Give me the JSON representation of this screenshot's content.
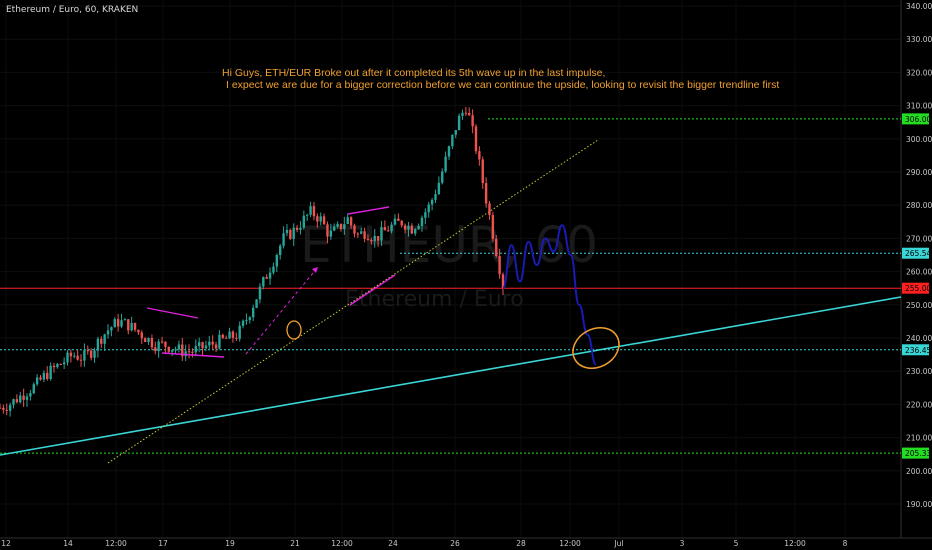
{
  "symbol_header": "Ethereum / Euro, 60, KRAKEN",
  "annotation": {
    "line1": "Hi Guys, ETH/EUR Broke out after it completed its 5th wave up in the last impulse,",
    "line2": "I expect we are due for a bigger correction before we can continue the upside, looking to revisit the bigger trendline first"
  },
  "watermark": {
    "ticker": "ETHEUR, 60",
    "name": "Ethereum / Euro"
  },
  "colors": {
    "background": "#000000",
    "up_candle": "#26a69a",
    "down_candle": "#ef5350",
    "support_line": "#22dd22",
    "resistance_red": "#ff2020",
    "cyan_trendline": "#3ad6d6",
    "yellow_trendline": "#c8c832",
    "magenta_channels": "#e020e0",
    "projection_path": "#1a1ab4",
    "circle": "#f0a030",
    "note_text": "#f0a030"
  },
  "chart_data": {
    "type": "candlestick",
    "title": "Ethereum / Euro, 60, KRAKEN",
    "ylim": [
      185,
      341
    ],
    "y_ticks": [
      190,
      200,
      210,
      220,
      230,
      240,
      250,
      260,
      270,
      280,
      290,
      300,
      310,
      320,
      330,
      340
    ],
    "y_tick_labels": [
      "190.00",
      "200.00",
      "210.00",
      "220.00",
      "230.00",
      "240.00",
      "250.00",
      "260.00",
      "270.00",
      "280.00",
      "290.00",
      "300.00",
      "310.00",
      "320.00",
      "330.00",
      "340.00"
    ],
    "x_tick_labels": [
      "12",
      "14",
      "12:00",
      "17",
      "19",
      "21",
      "12:00",
      "24",
      "26",
      "28",
      "12:00",
      "Jul",
      "3",
      "5",
      "12:00",
      "8"
    ],
    "price_levels": [
      {
        "value": 306.0,
        "label": "306.00",
        "color": "#22dd22"
      },
      {
        "value": 265.54,
        "label": "265.54",
        "color": "#3ad6d6"
      },
      {
        "value": 255.0,
        "label": "255.00",
        "color": "#ff2020"
      },
      {
        "value": 236.45,
        "label": "236.45",
        "color": "#3ad6d6"
      },
      {
        "value": 205.33,
        "label": "205.33",
        "color": "#22dd22"
      }
    ],
    "trend_close_path": [
      [
        0,
        219
      ],
      [
        2,
        220
      ],
      [
        4,
        222
      ],
      [
        6,
        224
      ],
      [
        8,
        226
      ],
      [
        10,
        229
      ],
      [
        12,
        231
      ],
      [
        14,
        233
      ],
      [
        16,
        235
      ],
      [
        18,
        234
      ],
      [
        20,
        236
      ],
      [
        22,
        240
      ],
      [
        24,
        243
      ],
      [
        26,
        245
      ],
      [
        28,
        244
      ],
      [
        30,
        242
      ],
      [
        32,
        240
      ],
      [
        34,
        238
      ],
      [
        36,
        238
      ],
      [
        38,
        237
      ],
      [
        40,
        236
      ],
      [
        42,
        236
      ],
      [
        44,
        237
      ],
      [
        46,
        238
      ],
      [
        48,
        239
      ],
      [
        50,
        240
      ],
      [
        52,
        241
      ],
      [
        54,
        246
      ],
      [
        56,
        252
      ],
      [
        58,
        258
      ],
      [
        60,
        264
      ],
      [
        62,
        270
      ],
      [
        64,
        272
      ],
      [
        66,
        275
      ],
      [
        68,
        278
      ],
      [
        70,
        276
      ],
      [
        72,
        271
      ],
      [
        74,
        273
      ],
      [
        76,
        276
      ],
      [
        78,
        271
      ],
      [
        80,
        272
      ],
      [
        82,
        270
      ],
      [
        84,
        272
      ],
      [
        86,
        274
      ],
      [
        88,
        275
      ],
      [
        90,
        273
      ],
      [
        92,
        276
      ],
      [
        94,
        280
      ],
      [
        96,
        287
      ],
      [
        98,
        296
      ],
      [
        100,
        305
      ],
      [
        102,
        310
      ],
      [
        104,
        298
      ],
      [
        106,
        284
      ],
      [
        108,
        270
      ],
      [
        110,
        256
      ]
    ],
    "projection_path": [
      [
        0,
        255
      ],
      [
        3,
        268
      ],
      [
        6,
        257
      ],
      [
        9,
        269
      ],
      [
        12,
        262
      ],
      [
        15,
        270
      ],
      [
        18,
        266
      ],
      [
        21,
        274
      ],
      [
        24,
        265
      ],
      [
        27,
        250
      ],
      [
        30,
        241
      ],
      [
        33,
        232
      ]
    ]
  }
}
